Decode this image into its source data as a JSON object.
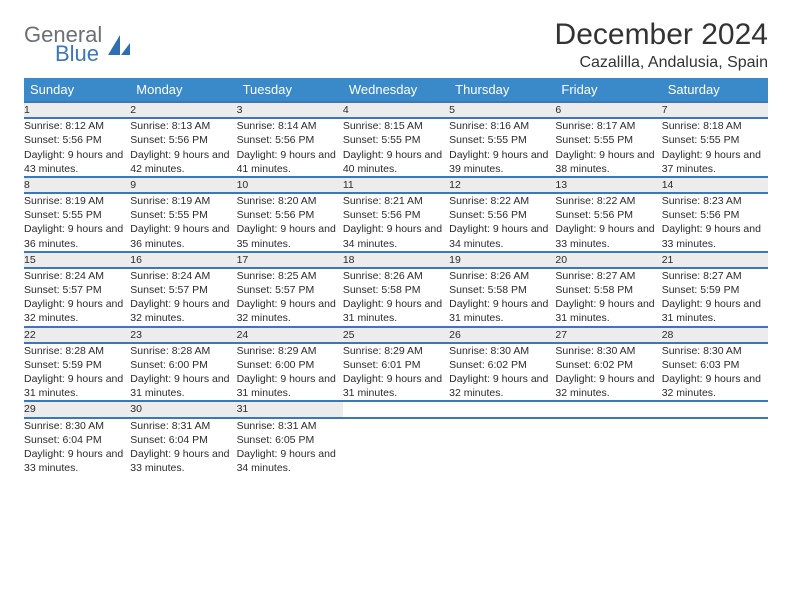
{
  "brand": {
    "word1": "General",
    "word2": "Blue"
  },
  "title": "December 2024",
  "location": "Cazalilla, Andalusia, Spain",
  "colors": {
    "header_bg": "#3a8ac9",
    "border": "#3a77bd",
    "daynum_bg": "#ececec",
    "text": "#2b2b2b"
  },
  "weekdays": [
    "Sunday",
    "Monday",
    "Tuesday",
    "Wednesday",
    "Thursday",
    "Friday",
    "Saturday"
  ],
  "weeks": [
    [
      {
        "n": "1",
        "sr": "8:12 AM",
        "ss": "5:56 PM",
        "dl": "9 hours and 43 minutes."
      },
      {
        "n": "2",
        "sr": "8:13 AM",
        "ss": "5:56 PM",
        "dl": "9 hours and 42 minutes."
      },
      {
        "n": "3",
        "sr": "8:14 AM",
        "ss": "5:56 PM",
        "dl": "9 hours and 41 minutes."
      },
      {
        "n": "4",
        "sr": "8:15 AM",
        "ss": "5:55 PM",
        "dl": "9 hours and 40 minutes."
      },
      {
        "n": "5",
        "sr": "8:16 AM",
        "ss": "5:55 PM",
        "dl": "9 hours and 39 minutes."
      },
      {
        "n": "6",
        "sr": "8:17 AM",
        "ss": "5:55 PM",
        "dl": "9 hours and 38 minutes."
      },
      {
        "n": "7",
        "sr": "8:18 AM",
        "ss": "5:55 PM",
        "dl": "9 hours and 37 minutes."
      }
    ],
    [
      {
        "n": "8",
        "sr": "8:19 AM",
        "ss": "5:55 PM",
        "dl": "9 hours and 36 minutes."
      },
      {
        "n": "9",
        "sr": "8:19 AM",
        "ss": "5:55 PM",
        "dl": "9 hours and 36 minutes."
      },
      {
        "n": "10",
        "sr": "8:20 AM",
        "ss": "5:56 PM",
        "dl": "9 hours and 35 minutes."
      },
      {
        "n": "11",
        "sr": "8:21 AM",
        "ss": "5:56 PM",
        "dl": "9 hours and 34 minutes."
      },
      {
        "n": "12",
        "sr": "8:22 AM",
        "ss": "5:56 PM",
        "dl": "9 hours and 34 minutes."
      },
      {
        "n": "13",
        "sr": "8:22 AM",
        "ss": "5:56 PM",
        "dl": "9 hours and 33 minutes."
      },
      {
        "n": "14",
        "sr": "8:23 AM",
        "ss": "5:56 PM",
        "dl": "9 hours and 33 minutes."
      }
    ],
    [
      {
        "n": "15",
        "sr": "8:24 AM",
        "ss": "5:57 PM",
        "dl": "9 hours and 32 minutes."
      },
      {
        "n": "16",
        "sr": "8:24 AM",
        "ss": "5:57 PM",
        "dl": "9 hours and 32 minutes."
      },
      {
        "n": "17",
        "sr": "8:25 AM",
        "ss": "5:57 PM",
        "dl": "9 hours and 32 minutes."
      },
      {
        "n": "18",
        "sr": "8:26 AM",
        "ss": "5:58 PM",
        "dl": "9 hours and 31 minutes."
      },
      {
        "n": "19",
        "sr": "8:26 AM",
        "ss": "5:58 PM",
        "dl": "9 hours and 31 minutes."
      },
      {
        "n": "20",
        "sr": "8:27 AM",
        "ss": "5:58 PM",
        "dl": "9 hours and 31 minutes."
      },
      {
        "n": "21",
        "sr": "8:27 AM",
        "ss": "5:59 PM",
        "dl": "9 hours and 31 minutes."
      }
    ],
    [
      {
        "n": "22",
        "sr": "8:28 AM",
        "ss": "5:59 PM",
        "dl": "9 hours and 31 minutes."
      },
      {
        "n": "23",
        "sr": "8:28 AM",
        "ss": "6:00 PM",
        "dl": "9 hours and 31 minutes."
      },
      {
        "n": "24",
        "sr": "8:29 AM",
        "ss": "6:00 PM",
        "dl": "9 hours and 31 minutes."
      },
      {
        "n": "25",
        "sr": "8:29 AM",
        "ss": "6:01 PM",
        "dl": "9 hours and 31 minutes."
      },
      {
        "n": "26",
        "sr": "8:30 AM",
        "ss": "6:02 PM",
        "dl": "9 hours and 32 minutes."
      },
      {
        "n": "27",
        "sr": "8:30 AM",
        "ss": "6:02 PM",
        "dl": "9 hours and 32 minutes."
      },
      {
        "n": "28",
        "sr": "8:30 AM",
        "ss": "6:03 PM",
        "dl": "9 hours and 32 minutes."
      }
    ],
    [
      {
        "n": "29",
        "sr": "8:30 AM",
        "ss": "6:04 PM",
        "dl": "9 hours and 33 minutes."
      },
      {
        "n": "30",
        "sr": "8:31 AM",
        "ss": "6:04 PM",
        "dl": "9 hours and 33 minutes."
      },
      {
        "n": "31",
        "sr": "8:31 AM",
        "ss": "6:05 PM",
        "dl": "9 hours and 34 minutes."
      },
      null,
      null,
      null,
      null
    ]
  ],
  "labels": {
    "sunrise": "Sunrise:",
    "sunset": "Sunset:",
    "daylight": "Daylight:"
  }
}
